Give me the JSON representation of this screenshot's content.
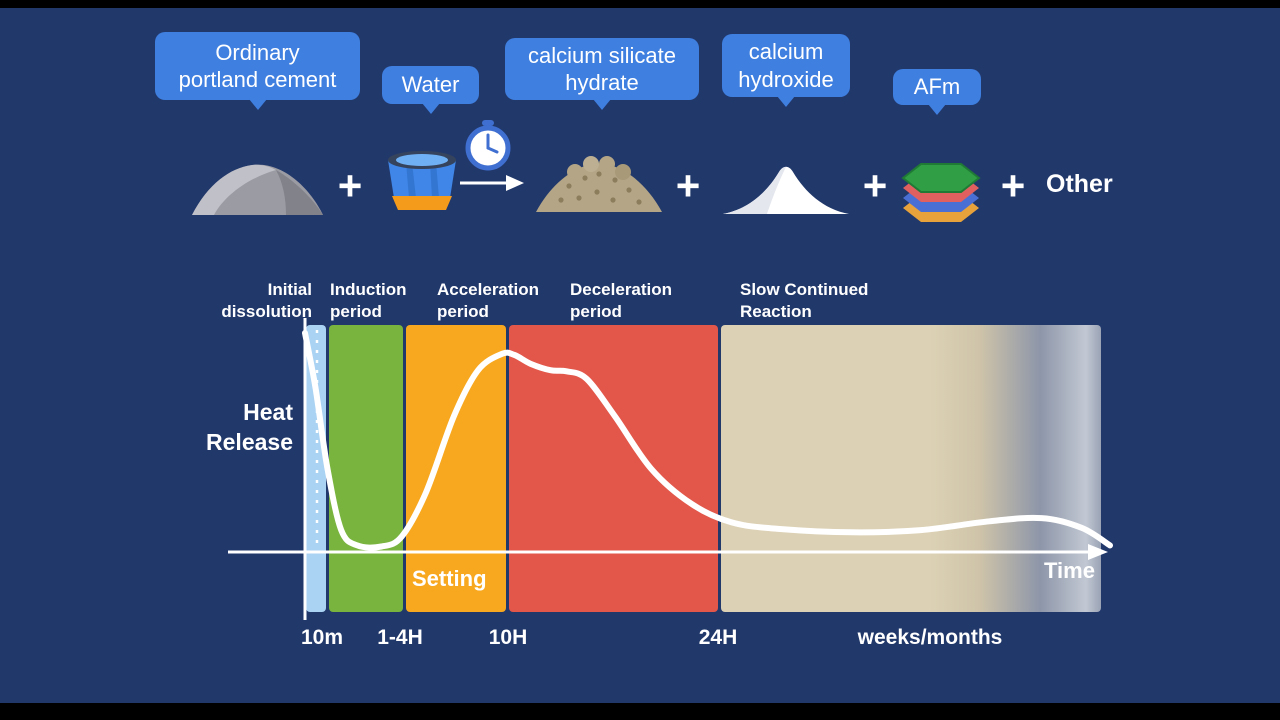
{
  "title": "Cement hydration reaction and heat release timeline",
  "colors": {
    "background": "#21386b",
    "bubble": "#3f7fe0",
    "curve": "#ffffff",
    "letterbox": "#000000"
  },
  "reaction": {
    "plus": "+",
    "other_label": "Other",
    "bubbles": [
      {
        "label": "Ordinary\nportland cement",
        "points_to": "cement-pile"
      },
      {
        "label": "Water",
        "points_to": "water-bucket"
      },
      {
        "label": "calcium silicate\nhydrate",
        "points_to": "csh-pile"
      },
      {
        "label": "calcium\nhydroxide",
        "points_to": "calcium-hydroxide-pile"
      },
      {
        "label": "AFm",
        "points_to": "afm-layer-stack"
      }
    ],
    "icons": [
      {
        "name": "cement-pile-icon"
      },
      {
        "name": "water-bucket-icon"
      },
      {
        "name": "clock-icon"
      },
      {
        "name": "reaction-arrow-icon"
      },
      {
        "name": "csh-pile-icon"
      },
      {
        "name": "calcium-hydroxide-pile-icon"
      },
      {
        "name": "afm-layers-icon"
      }
    ]
  },
  "chart": {
    "y_axis_label": "Heat\nRelease",
    "x_axis_label": "Time",
    "setting_label": "Setting",
    "period_labels": [
      "Initial\ndissolution",
      "Induction\nperiod",
      "Acceleration\nperiod",
      "Deceleration\nperiod",
      "Slow Continued\nReaction"
    ],
    "tick_labels": [
      "10m",
      "1-4H",
      "10H",
      "24H",
      "weeks/months"
    ]
  },
  "chart_data": {
    "type": "line",
    "xlabel": "Time",
    "ylabel": "Heat Release",
    "x_ticks": [
      "10m",
      "1-4H",
      "10H",
      "24H",
      "weeks/months"
    ],
    "grid": false,
    "legend": false,
    "phases": [
      {
        "label": "Initial dissolution",
        "start": "0",
        "end": "10m",
        "color": "#a9d2f3"
      },
      {
        "label": "Induction period",
        "start": "10m",
        "end": "1-4H",
        "color": "#79b43e"
      },
      {
        "label": "Acceleration period",
        "start": "1-4H",
        "end": "10H",
        "color": "#f8a81f",
        "annotation": "Setting"
      },
      {
        "label": "Deceleration period",
        "start": "10H",
        "end": "24H",
        "color": "#e2574a"
      },
      {
        "label": "Slow Continued Reaction",
        "start": "24H",
        "end": "weeks/months",
        "color": "#dcd1b4"
      }
    ],
    "series": [
      {
        "name": "Heat release",
        "units": {
          "x": "percent of timeline (qualitative)",
          "y": "relative heat 0-100"
        },
        "points": [
          [
            0,
            100
          ],
          [
            1.3,
            75
          ],
          [
            2.8,
            38
          ],
          [
            4.5,
            10
          ],
          [
            6.5,
            3
          ],
          [
            9.5,
            2.5
          ],
          [
            12,
            7
          ],
          [
            15,
            27
          ],
          [
            18.5,
            62
          ],
          [
            21.5,
            83
          ],
          [
            24.5,
            90.5
          ],
          [
            26,
            90
          ],
          [
            28,
            86
          ],
          [
            30.5,
            83
          ],
          [
            32.5,
            82.5
          ],
          [
            35,
            79
          ],
          [
            38.5,
            62
          ],
          [
            43,
            38
          ],
          [
            48,
            22
          ],
          [
            53,
            13.5
          ],
          [
            59,
            10.5
          ],
          [
            68,
            9
          ],
          [
            76.5,
            10
          ],
          [
            85,
            14
          ],
          [
            91.5,
            15.5
          ],
          [
            96.5,
            11
          ],
          [
            100,
            3
          ]
        ]
      }
    ]
  }
}
